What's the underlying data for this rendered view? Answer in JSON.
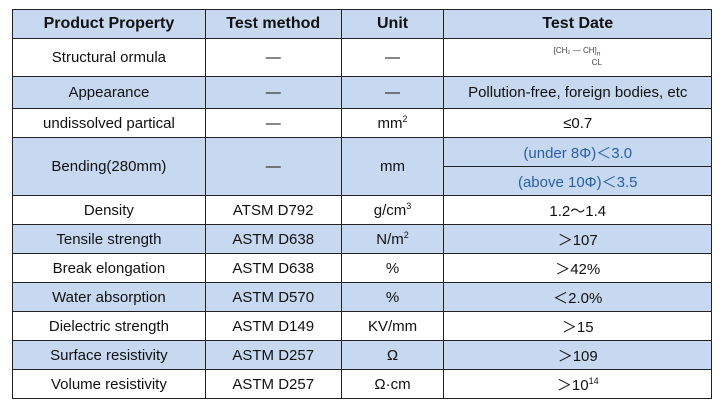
{
  "table": {
    "header": [
      "Product Property",
      "Test method",
      "Unit",
      "Test Date"
    ],
    "rows": [
      [
        "Structural ormula",
        "—",
        "—",
        {
          "a": "CH₂",
          "b": "CH",
          "side": "CL",
          "n": "n"
        }
      ],
      [
        "Appearance",
        "—",
        "—",
        "Pollution-free, foreign bodies, etc"
      ],
      [
        "undissolved partical",
        "—",
        {
          "text": "mm",
          "sup": "2"
        },
        "≤0.7"
      ],
      [
        "Bending(280mm)",
        "—",
        "mm",
        [
          "(under 8Φ)＜3.0",
          "(above 10Φ)＜3.5"
        ]
      ],
      [
        "Density",
        "ATSM D792",
        {
          "text": "g/cm",
          "sup": "3"
        },
        "1.2～1.4"
      ],
      [
        "Tensile strength",
        "ASTM D638",
        {
          "text": "N/m",
          "sup": "2"
        },
        "＞107"
      ],
      [
        "Break elongation",
        "ASTM D638",
        "%",
        "＞42%"
      ],
      [
        "Water absorption",
        "ASTM D570",
        "%",
        "＜2.0%"
      ],
      [
        "Dielectric strength",
        "ASTM D149",
        "KV/mm",
        "＞15"
      ],
      [
        "Surface resistivity",
        "ASTM D257",
        "Ω",
        "＞109"
      ],
      [
        "Volume resistivity",
        "ASTM D257",
        "Ω·cm",
        {
          "text": "＞10",
          "sup": "14"
        }
      ]
    ]
  }
}
